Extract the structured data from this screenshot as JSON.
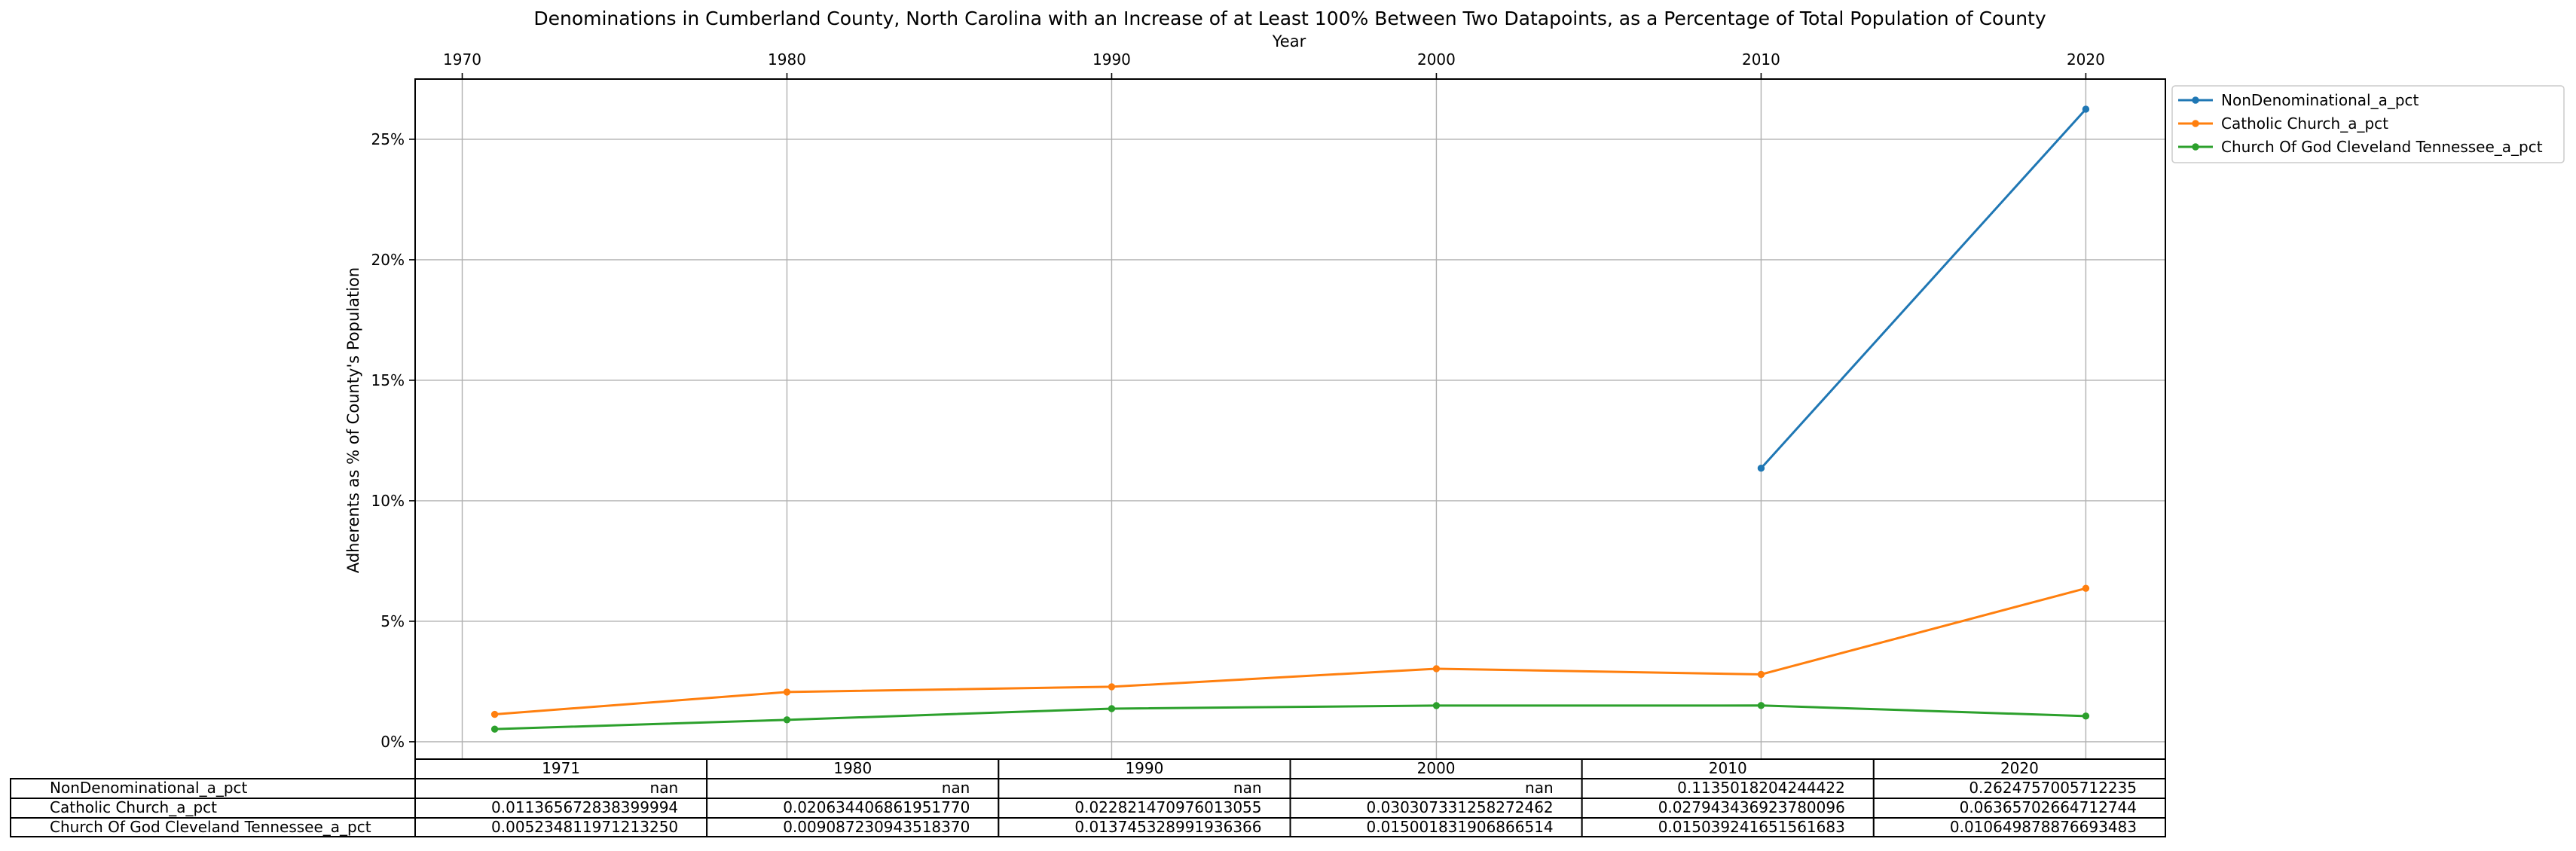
{
  "chart_data": {
    "type": "line",
    "title": "Denominations in Cumberland County, North Carolina with an Increase of at Least 100% Between Two Datapoints, as a Percentage of Total Population of County",
    "xlabel": "Year",
    "ylabel": "Adherents as % of County's Population",
    "x": [
      1971,
      1980,
      1990,
      2000,
      2010,
      2020
    ],
    "xticks": [
      1970,
      1980,
      1990,
      2000,
      2010,
      2020
    ],
    "xlim": [
      1968.55,
      2022.45
    ],
    "ylim": [
      -0.00721,
      0.27497
    ],
    "yticks": [
      0,
      0.05,
      0.1,
      0.15,
      0.2,
      0.25
    ],
    "ytick_labels": [
      "0%",
      "5%",
      "10%",
      "15%",
      "20%",
      "25%"
    ],
    "grid": true,
    "legend_position": "outside-top-right",
    "series": [
      {
        "name": "NonDenominational_a_pct",
        "color": "#1f77b4",
        "values": [
          null,
          null,
          null,
          null,
          0.1135018204244422,
          0.2624757005712235
        ],
        "table_values": [
          "nan",
          "nan",
          "nan",
          "nan",
          "0.1135018204244422",
          "0.2624757005712235"
        ]
      },
      {
        "name": "Catholic Church_a_pct",
        "color": "#ff7f0e",
        "values": [
          0.01136567283839994,
          0.02063440686195177,
          0.022821470976013055,
          0.030307331258272462,
          0.027943436923780096,
          0.06365702664712744
        ],
        "table_values": [
          "0.011365672838399994",
          "0.020634406861951770",
          "0.022821470976013055",
          "0.030307331258272462",
          "0.027943436923780096",
          "0.06365702664712744"
        ]
      },
      {
        "name": "Church Of God Cleveland Tennessee_a_pct",
        "color": "#2ca02c",
        "values": [
          0.00523481197121325,
          0.00908723094351837,
          0.013745328991936366,
          0.015001831906866514,
          0.015039241651561683,
          0.010649878876693483
        ],
        "table_values": [
          "0.005234811971213250",
          "0.009087230943518370",
          "0.013745328991936366",
          "0.015001831906866514",
          "0.015039241651561683",
          "0.010649878876693483"
        ]
      }
    ],
    "table": {
      "columns": [
        "1971",
        "1980",
        "1990",
        "2000",
        "2010",
        "2020"
      ]
    }
  }
}
